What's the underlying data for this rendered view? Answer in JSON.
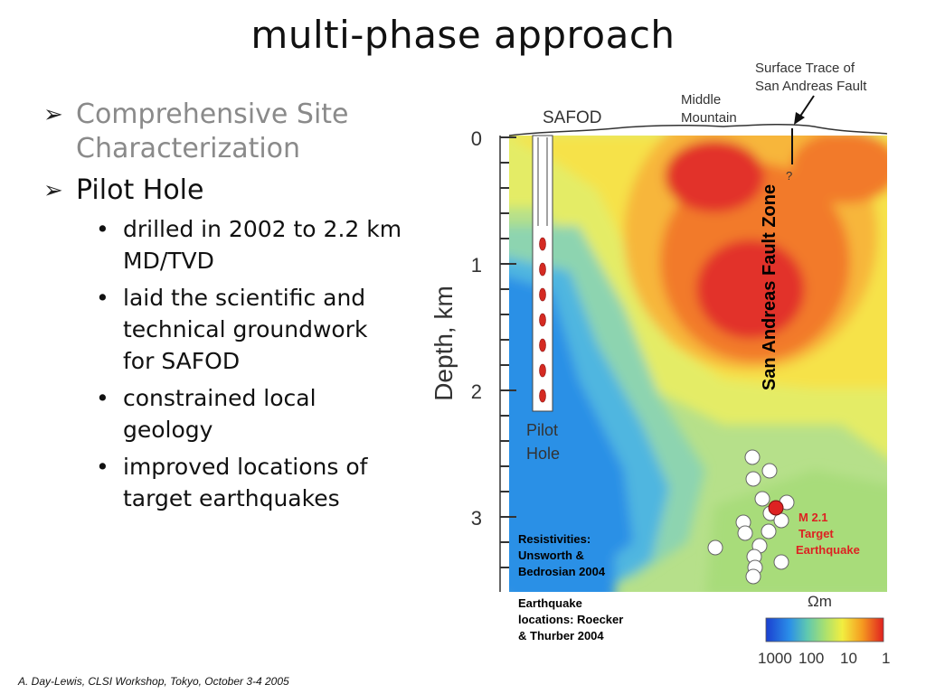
{
  "slide": {
    "title": "multi-phase approach",
    "bullets": [
      {
        "level": 1,
        "text": "Comprehensive Site Characterization",
        "lines": [
          "Comprehensive Site",
          "Characterization"
        ],
        "color": "#8a8a8a"
      },
      {
        "level": 1,
        "text": "Pilot Hole",
        "lines": [
          "Pilot Hole"
        ],
        "color": "#111111"
      },
      {
        "level": 2,
        "lines": [
          "drilled in 2002 to 2.2 km",
          "MD/TVD"
        ]
      },
      {
        "level": 2,
        "lines": [
          "laid the scientific and",
          "technical groundwork",
          "for SAFOD"
        ]
      },
      {
        "level": 2,
        "lines": [
          "constrained local",
          "geology"
        ]
      },
      {
        "level": 2,
        "lines": [
          "improved locations of",
          "target earthquakes"
        ]
      }
    ],
    "footer": "A. Day-Lewis, CLSI Workshop, Tokyo, October 3-4 2005"
  },
  "figure": {
    "y_axis_label": "Depth, km",
    "y_ticks": [
      "0",
      "1",
      "2",
      "3"
    ],
    "labels": {
      "safod": "SAFOD",
      "middle_mountain": [
        "Middle",
        "Mountain"
      ],
      "surface_trace": [
        "Surface Trace of",
        "San Andreas Fault"
      ],
      "question": "?",
      "fault_zone": "San Andreas Fault Zone",
      "pilot_hole": [
        "Pilot",
        "Hole"
      ],
      "target_eq": [
        "M 2.1",
        "Target",
        "Earthquake"
      ],
      "resistivity_credit": [
        "Resistivities:",
        "Unsworth &",
        "Bedrosian 2004"
      ],
      "eq_credit": [
        "Earthquake",
        "locations: Roecker",
        "& Thurber 2004"
      ],
      "unit": "Ωm",
      "scale_ticks": [
        "1000",
        "100",
        "10",
        "1"
      ]
    },
    "colors": {
      "target_eq": "#dd2222",
      "credit_text": "#000000",
      "fault_label": "#000000"
    }
  }
}
